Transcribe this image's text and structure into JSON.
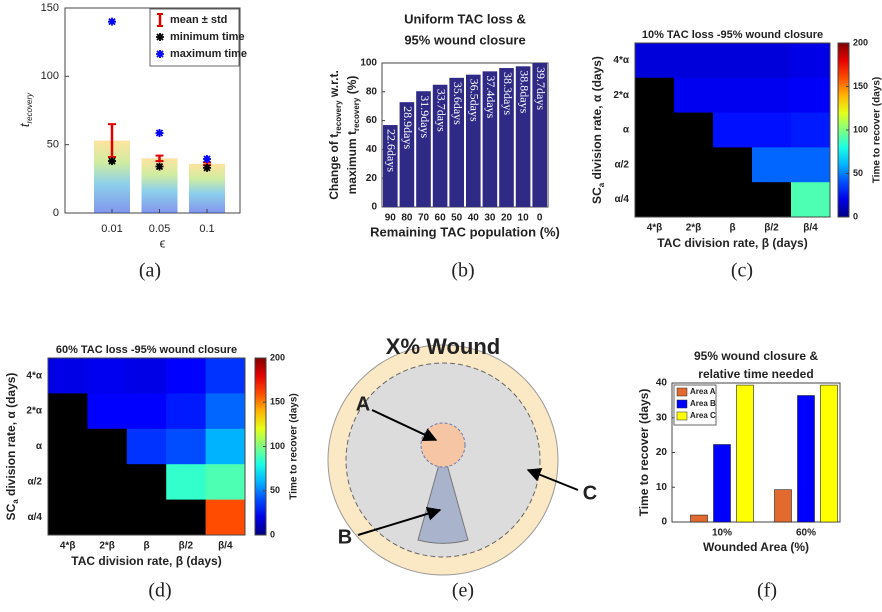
{
  "chart_data": [
    {
      "type": "errorbar",
      "categories": [
        "0.01",
        "0.05",
        "0.1"
      ],
      "mean": [
        53,
        40,
        36
      ],
      "std": [
        12,
        2,
        1
      ],
      "min": [
        38,
        34,
        33
      ],
      "max": [
        140,
        58.5,
        39.5
      ],
      "legend": [
        "mean ± std",
        "minimum time",
        "maximum time"
      ],
      "colors": [
        "#e00000",
        "#000000",
        "#0000ff"
      ],
      "ylim": [
        0,
        150
      ],
      "yticks": [
        0,
        50,
        100,
        150
      ],
      "xlabel": "ϵ",
      "ylabel": [
        "t",
        "recovery"
      ]
    },
    {
      "type": "bar",
      "title": [
        "Uniform TAC loss &",
        "95% wound closure"
      ],
      "categories": [
        "90",
        "80",
        "70",
        "60",
        "50",
        "40",
        "30",
        "20",
        "10",
        "0"
      ],
      "values": [
        56.9,
        72.8,
        80.4,
        84.9,
        89.7,
        91.9,
        94.2,
        96.5,
        97.7,
        100
      ],
      "bar_texts": [
        "22.6days",
        "28.9days",
        "31.9days",
        "33.7days",
        "35.6days",
        "36.5days",
        "37.4days",
        "38.3days",
        "38.8days",
        "39.7days"
      ],
      "color": "#2e2a86",
      "ylim": [
        0,
        100
      ],
      "yticks": [
        0,
        20,
        40,
        60,
        80,
        100
      ],
      "xlabel": "Remaining TAC population (%)",
      "ylabel": [
        [
          "Change of t",
          "recovery",
          " w.r.t."
        ],
        [
          "maximum t",
          "recovery",
          " (%)"
        ]
      ]
    },
    {
      "type": "heatmap",
      "title": "10% TAC loss -95% wound closure",
      "xticklabels": [
        "4*β",
        "2*β",
        "β",
        "β/2",
        "β/4"
      ],
      "yticklabels": [
        "4*α",
        "2*α",
        "α",
        "α/2",
        "α/4"
      ],
      "z": [
        [
          18,
          18,
          18,
          18,
          20
        ],
        [
          null,
          22,
          22,
          22,
          24
        ],
        [
          null,
          null,
          28,
          28,
          30
        ],
        [
          null,
          null,
          null,
          45,
          45
        ],
        [
          null,
          null,
          null,
          null,
          90
        ]
      ],
      "clim": [
        0,
        200
      ],
      "cticks": [
        0,
        50,
        100,
        150,
        200
      ],
      "clabel": "Time to recover (days)",
      "xlabel": "TAC division rate, β (days)",
      "ylabel": [
        "SC",
        "a",
        " division rate, α (days)"
      ]
    },
    {
      "type": "heatmap",
      "title": "60% TAC loss -95% wound closure",
      "xticklabels": [
        "4*β",
        "2*β",
        "β",
        "β/2",
        "β/4"
      ],
      "yticklabels": [
        "4*α",
        "2*α",
        "α",
        "α/2",
        "α/4"
      ],
      "z": [
        [
          20,
          22,
          20,
          25,
          35
        ],
        [
          null,
          25,
          25,
          30,
          45
        ],
        [
          null,
          null,
          35,
          40,
          60
        ],
        [
          null,
          null,
          null,
          85,
          90
        ],
        [
          null,
          null,
          null,
          null,
          160
        ]
      ],
      "clim": [
        0,
        200
      ],
      "cticks": [
        0,
        50,
        100,
        150,
        200
      ],
      "clabel": "Time to recover (days)",
      "xlabel": "TAC division rate, β (days)",
      "ylabel": [
        "SC",
        "a",
        " division rate, α (days)"
      ]
    },
    {
      "type": "grouped_bar",
      "title": [
        "95% wound closure &",
        "relative time needed"
      ],
      "categories": [
        "10%",
        "60%"
      ],
      "series": [
        {
          "name": "Area A",
          "color": "#e36a2e",
          "values": [
            2,
            9.3
          ]
        },
        {
          "name": "Area B",
          "color": "#0000ff",
          "values": [
            22.3,
            36.4
          ]
        },
        {
          "name": "Area C",
          "color": "#ffff00",
          "values": [
            39.4,
            39.4
          ]
        }
      ],
      "ylim": [
        0,
        40
      ],
      "yticks": [
        0,
        10,
        20,
        30,
        40
      ],
      "xlabel": "Wounded Area (%)",
      "ylabel": "Time to recover (days)"
    }
  ],
  "diagram": {
    "title": "X% Wound",
    "labels": [
      "A",
      "B",
      "C"
    ]
  },
  "captions": [
    "(a)",
    "(b)",
    "(c)",
    "(d)",
    "(e)",
    "(f)"
  ]
}
